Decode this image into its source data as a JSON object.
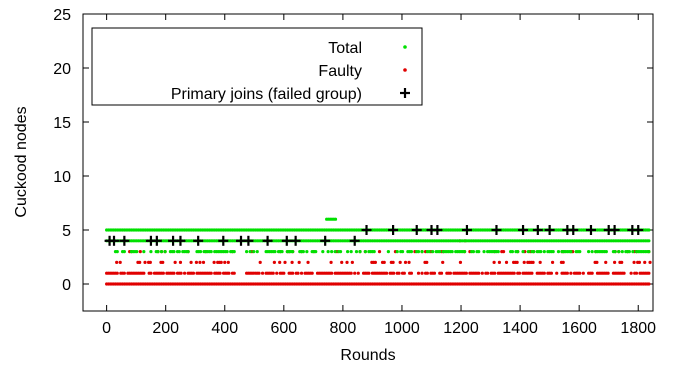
{
  "chart_data": {
    "type": "scatter",
    "title": "",
    "xlabel": "Rounds",
    "ylabel": "Cuckood nodes",
    "xlim": [
      -80,
      1850
    ],
    "ylim": [
      -2.5,
      25
    ],
    "x_ticks": [
      0,
      200,
      400,
      600,
      800,
      1000,
      1200,
      1400,
      1600,
      1800
    ],
    "y_ticks": [
      0,
      5,
      10,
      15,
      20,
      25
    ],
    "grid": false,
    "legend_position": "top-left",
    "series": [
      {
        "name": "Total",
        "color": "#00e000",
        "marker": "dot",
        "bands": [
          {
            "y": 4,
            "x_start": 0,
            "x_end": 1840
          },
          {
            "y": 5,
            "x_start": 0,
            "x_end": 1840
          }
        ],
        "scattered": [
          {
            "y": 3,
            "x_start": 30,
            "x_end": 1840,
            "density": 0.55
          },
          {
            "y": 6,
            "x_start": 745,
            "x_end": 775,
            "density": 1.0
          }
        ]
      },
      {
        "name": "Faulty",
        "color": "#e00000",
        "marker": "dot",
        "bands": [
          {
            "y": 0,
            "x_start": 0,
            "x_end": 1840
          }
        ],
        "scattered": [
          {
            "y": 1,
            "x_start": 0,
            "x_end": 1840,
            "density": 0.7
          },
          {
            "y": 2,
            "x_start": 10,
            "x_end": 1840,
            "density": 0.18
          },
          {
            "y": 3,
            "x_start": 30,
            "x_end": 1840,
            "density": 0.14
          },
          {
            "y": 4,
            "x_start": 1190,
            "x_end": 1225,
            "density": 0.6
          }
        ]
      },
      {
        "name": "Primary joins (failed group)",
        "color": "#000000",
        "marker": "plus",
        "points": [
          [
            10,
            4
          ],
          [
            25,
            4
          ],
          [
            60,
            4
          ],
          [
            150,
            4
          ],
          [
            170,
            4
          ],
          [
            225,
            4
          ],
          [
            250,
            4
          ],
          [
            310,
            4
          ],
          [
            395,
            4
          ],
          [
            455,
            4
          ],
          [
            480,
            4
          ],
          [
            545,
            4
          ],
          [
            610,
            4
          ],
          [
            640,
            4
          ],
          [
            740,
            4
          ],
          [
            840,
            4
          ],
          [
            880,
            5
          ],
          [
            970,
            5
          ],
          [
            1050,
            5
          ],
          [
            1100,
            5
          ],
          [
            1120,
            5
          ],
          [
            1220,
            5
          ],
          [
            1320,
            5
          ],
          [
            1410,
            5
          ],
          [
            1460,
            5
          ],
          [
            1500,
            5
          ],
          [
            1560,
            5
          ],
          [
            1580,
            5
          ],
          [
            1640,
            5
          ],
          [
            1700,
            5
          ],
          [
            1720,
            5
          ],
          [
            1780,
            5
          ],
          [
            1800,
            5
          ]
        ]
      }
    ]
  }
}
